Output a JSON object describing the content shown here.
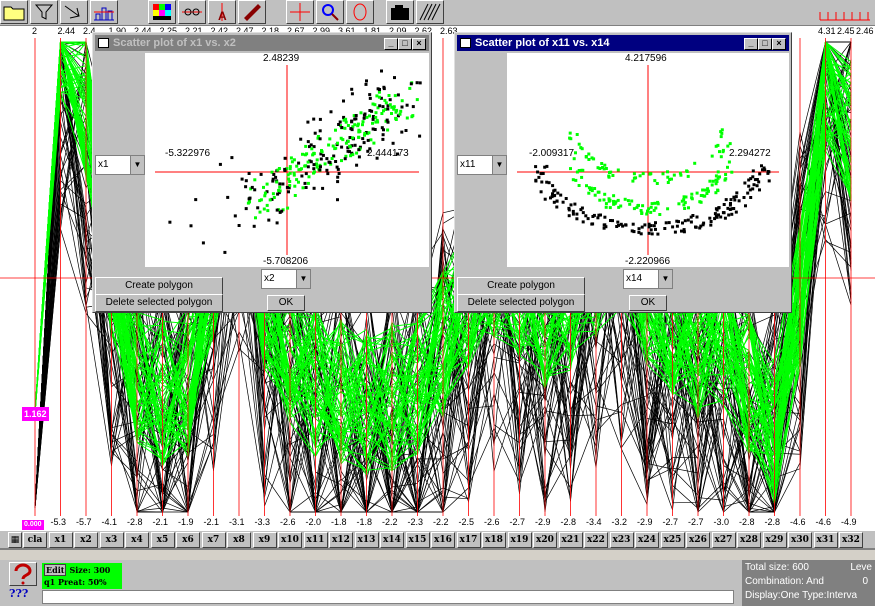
{
  "toolbar": {
    "buttons": [
      "open-folder-icon",
      "filter-icon",
      "arrow-icon",
      "histogram-icon",
      "color-grid-icon",
      "brush-icon",
      "font-icon",
      "pen-icon",
      "crosshair-icon",
      "magnifier-icon",
      "lasso-icon",
      "camera-icon",
      "stripes-icon"
    ]
  },
  "top_values": [
    "2",
    "2.44",
    "2.4",
    "1.90",
    "2.44",
    "2.25",
    "2.21",
    "2.42",
    "2.47",
    "2.18",
    "2.67",
    "2.99",
    "3.61",
    "1.81",
    "2.09",
    "2.62",
    "2.63",
    "4.31",
    "2.45",
    "2.46"
  ],
  "bottom_values": [
    "-5.3",
    "-5.7",
    "-4.1",
    "-2.8",
    "-2.1",
    "-1.9",
    "-2.1",
    "-3.1",
    "-3.3",
    "-2.6",
    "-2.0",
    "-1.8",
    "-1.8",
    "-2.2",
    "-2.3",
    "-2.2",
    "-2.5",
    "-2.6",
    "-2.7",
    "-2.9",
    "-2.8",
    "-3.4",
    "-3.2",
    "-2.9",
    "-2.7",
    "-2.7",
    "-3.0",
    "-2.8",
    "-2.8",
    "-4.6",
    "-4.6",
    "-4.9"
  ],
  "axes": [
    "cla",
    "x1",
    "x2",
    "x3",
    "x4",
    "x5",
    "x6",
    "x7",
    "x8",
    "x9",
    "x10",
    "x11",
    "x12",
    "x13",
    "x14",
    "x15",
    "x16",
    "x17",
    "x18",
    "x19",
    "x20",
    "x21",
    "x22",
    "x23",
    "x24",
    "x25",
    "x26",
    "x27",
    "x28",
    "x29",
    "x30",
    "x31",
    "x32"
  ],
  "markers": {
    "upper": "1.162",
    "lower": "0.000"
  },
  "scatter1": {
    "title": "Scatter plot of x1 vs. x2",
    "y_max": "2.48239",
    "y_min": "-5.708206",
    "x_min": "-5.322976",
    "x_max": "2.444173",
    "y_select": "x1",
    "x_select": "x2",
    "create_polygon": "Create polygon",
    "delete_polygon": "Delete selected polygon",
    "ok": "OK"
  },
  "scatter2": {
    "title": "Scatter plot of x11 vs. x14",
    "y_max": "4.217596",
    "y_min": "-2.220966",
    "x_min": "-2.009317",
    "x_max": "2.294272",
    "y_select": "x11",
    "x_select": "x14",
    "create_polygon": "Create polygon",
    "delete_polygon": "Delete selected polygon",
    "ok": "OK"
  },
  "status": {
    "size_line": "Size: 300",
    "preat_line": "q1  Preat: 50%",
    "edit_label": "Edit",
    "qmarks": "???",
    "total_size": "Total size: 600",
    "level": "Leve",
    "combination": "Combination: And",
    "combination_val": "0",
    "display": "Display:One Type:Interva"
  },
  "colors": {
    "green": "#00ff00",
    "red": "#ff0000",
    "magenta": "#ff00ff",
    "title_active": "#000080",
    "title_inactive": "#808080"
  }
}
